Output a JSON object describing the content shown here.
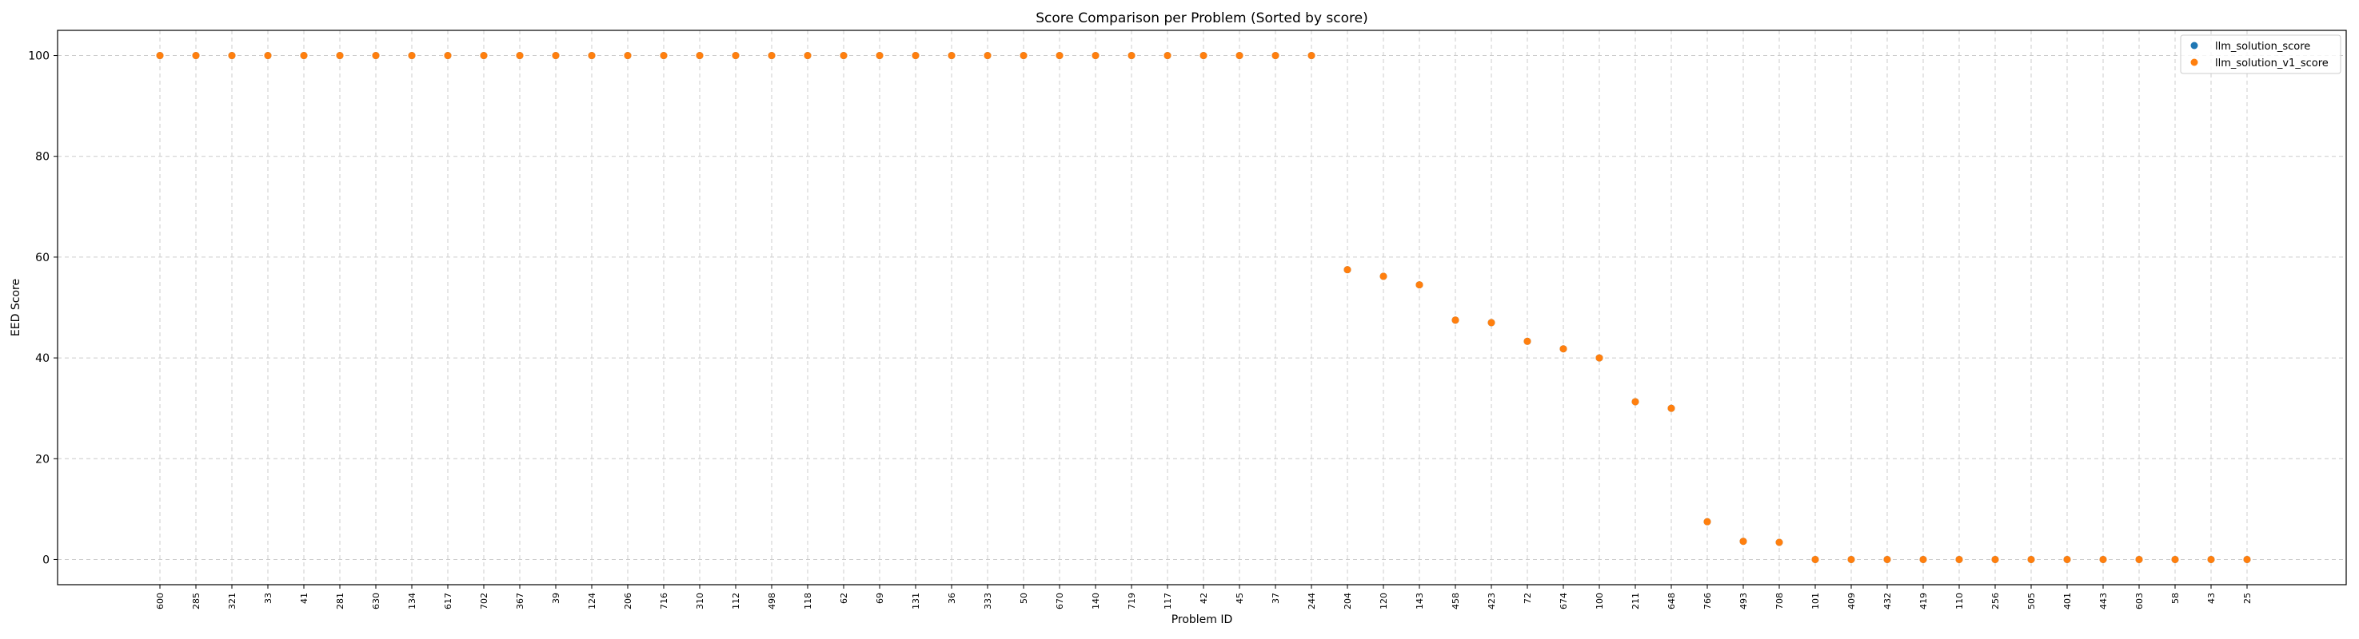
{
  "chart_data": {
    "type": "scatter",
    "title": "Score Comparison per Problem (Sorted by score)",
    "xlabel": "Problem ID",
    "ylabel": "EED Score",
    "ylim": [
      -5,
      105
    ],
    "yticks": [
      0,
      20,
      40,
      60,
      80,
      100
    ],
    "grid": true,
    "legend_position": "top-right",
    "categories": [
      "600",
      "285",
      "321",
      "33",
      "41",
      "281",
      "630",
      "134",
      "617",
      "702",
      "367",
      "39",
      "124",
      "206",
      "716",
      "310",
      "112",
      "498",
      "118",
      "62",
      "69",
      "131",
      "36",
      "333",
      "50",
      "670",
      "140",
      "719",
      "117",
      "42",
      "45",
      "37",
      "244",
      "204",
      "120",
      "143",
      "458",
      "423",
      "72",
      "674",
      "100",
      "211",
      "648",
      "766",
      "493",
      "708",
      "101",
      "409",
      "432",
      "419",
      "110",
      "256",
      "505",
      "401",
      "443",
      "603",
      "58",
      "43",
      "25"
    ],
    "series": [
      {
        "name": "llm_solution_score",
        "color": "#1f77b4",
        "values": [
          100,
          100,
          100,
          100,
          100,
          100,
          100,
          100,
          100,
          100,
          100,
          100,
          100,
          100,
          100,
          100,
          100,
          100,
          100,
          100,
          100,
          100,
          100,
          100,
          100,
          100,
          100,
          100,
          100,
          100,
          100,
          100,
          100,
          57.5,
          56.2,
          54.5,
          47.5,
          47,
          43.3,
          41.8,
          40,
          31.3,
          30,
          7.5,
          3.6,
          3.4,
          0,
          0,
          0,
          0,
          0,
          0,
          0,
          0,
          0,
          0,
          0,
          0,
          0
        ]
      },
      {
        "name": "llm_solution_v1_score",
        "color": "#ff7f0e",
        "values": [
          100,
          100,
          100,
          100,
          100,
          100,
          100,
          100,
          100,
          100,
          100,
          100,
          100,
          100,
          100,
          100,
          100,
          100,
          100,
          100,
          100,
          100,
          100,
          100,
          100,
          100,
          100,
          100,
          100,
          100,
          100,
          100,
          100,
          57.5,
          56.2,
          54.5,
          47.5,
          47,
          43.3,
          41.8,
          40,
          31.3,
          30,
          7.5,
          3.6,
          3.4,
          0,
          0,
          0,
          0,
          0,
          0,
          0,
          0,
          0,
          0,
          0,
          0,
          0
        ]
      }
    ]
  }
}
